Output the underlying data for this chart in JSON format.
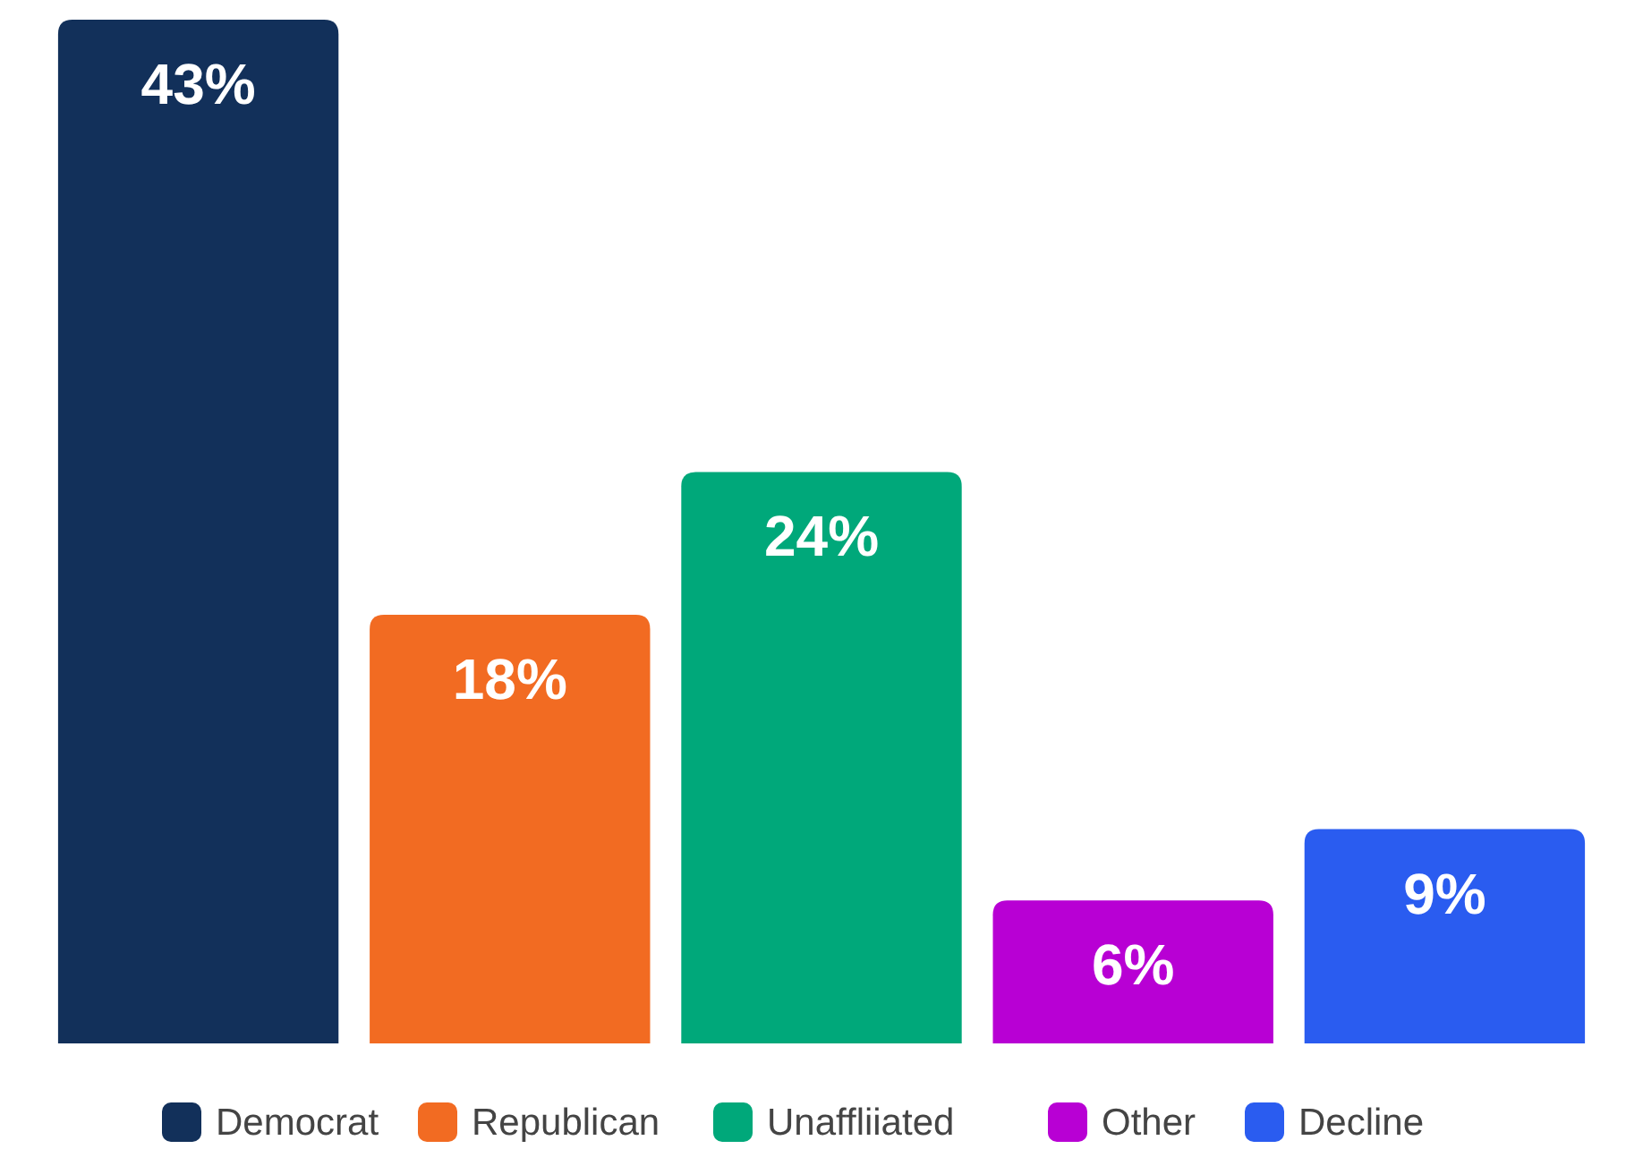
{
  "chart_data": {
    "type": "bar",
    "categories": [
      null
    ],
    "series": [
      {
        "name": "Democrat",
        "color": "#12305a",
        "values": [
          43
        ],
        "value_labels": [
          "43%"
        ]
      },
      {
        "name": "Republican",
        "color": "#f26b22",
        "values": [
          18
        ],
        "value_labels": [
          "18%"
        ]
      },
      {
        "name": "Unaffliiated",
        "color": "#00a87a",
        "values": [
          24
        ],
        "value_labels": [
          "24%"
        ]
      },
      {
        "name": "Other",
        "color": "#b800d4",
        "values": [
          6
        ],
        "value_labels": [
          "6%"
        ]
      },
      {
        "name": "Decline",
        "color": "#2a5cf0",
        "values": [
          9
        ],
        "value_labels": [
          "9%"
        ]
      }
    ],
    "legend": "bottom",
    "grid": false
  }
}
